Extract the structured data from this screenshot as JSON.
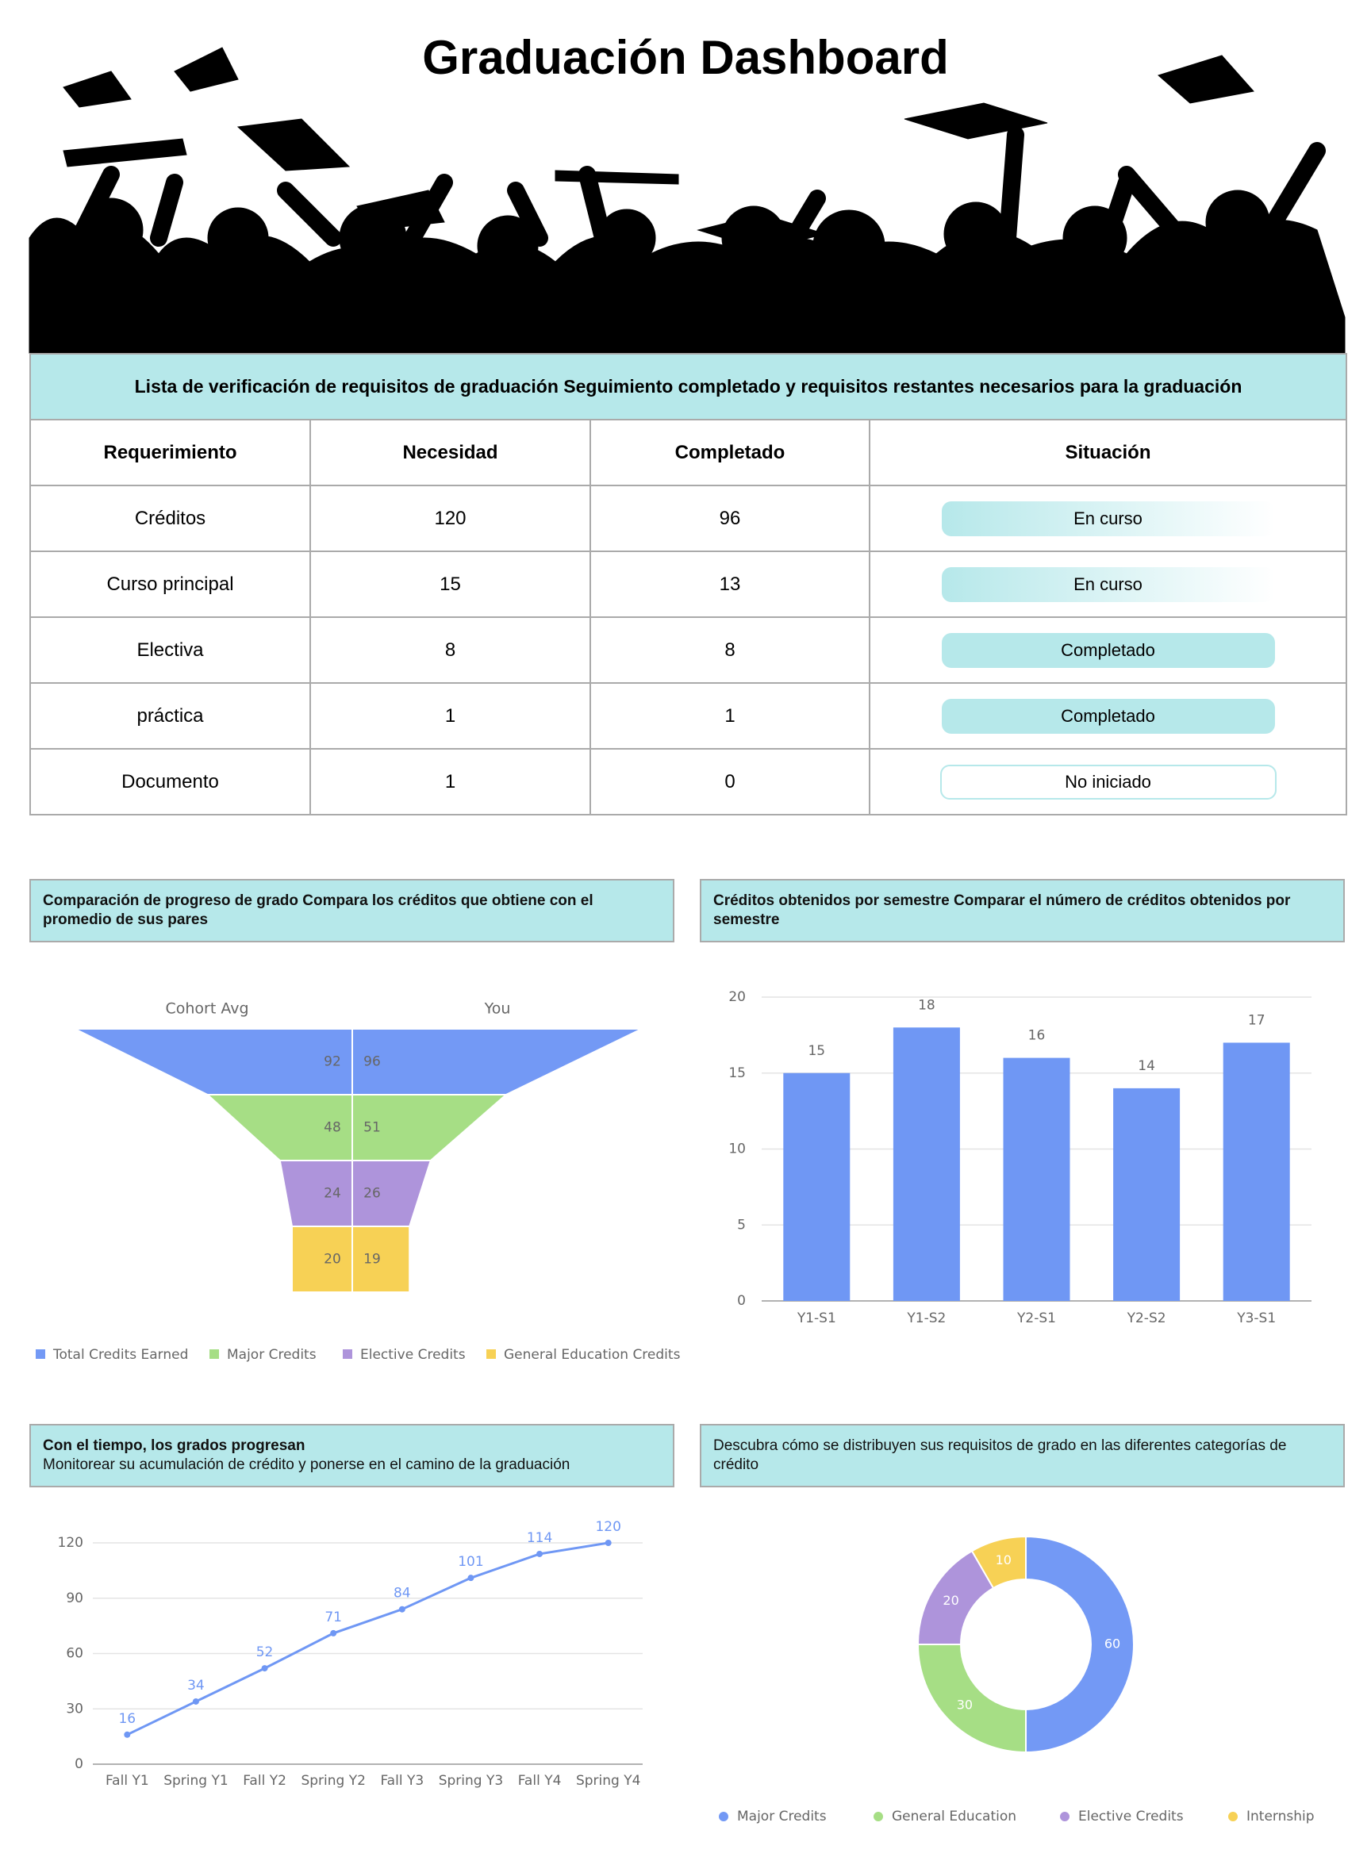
{
  "header": {
    "title": "Graduación Dashboard"
  },
  "table": {
    "caption": "Lista de verificación de requisitos de graduación Seguimiento completado y requisitos restantes necesarios para la graduación",
    "columns": [
      "Requerimiento",
      "Necesidad",
      "Completado",
      "Situación"
    ],
    "rows": [
      [
        "Créditos",
        120,
        96,
        "En curso"
      ],
      [
        "Curso principal",
        15,
        13,
        "En curso"
      ],
      [
        "Electiva",
        8,
        8,
        "Completado"
      ],
      [
        "práctica",
        1,
        1,
        "Completado"
      ],
      [
        "Documento",
        1,
        0,
        "No iniciado"
      ]
    ]
  },
  "chart_data": [
    {
      "type": "funnel",
      "title": "Comparación de progreso de grado Compara los créditos que obtiene con el promedio de sus pares",
      "categories": [
        "Total Credits Earned",
        "Major Credits",
        "Elective Credits",
        "General Education Credits"
      ],
      "colors": [
        "#7399f5",
        "#a6de85",
        "#ae94db",
        "#f7d155"
      ],
      "series": [
        {
          "name": "Cohort Avg",
          "values": [
            92,
            48,
            24,
            20
          ]
        },
        {
          "name": "You",
          "values": [
            96,
            51,
            26,
            19
          ]
        }
      ]
    },
    {
      "type": "bar",
      "title": "Créditos obtenidos por semestre Comparar el número de créditos obtenidos por semestre",
      "categories": [
        "Y1-S1",
        "Y1-S2",
        "Y2-S1",
        "Y2-S2",
        "Y3-S1"
      ],
      "values": [
        15,
        18,
        16,
        14,
        17
      ],
      "color": "#6f97f4",
      "ylim": [
        0,
        20
      ],
      "yticks": [
        0,
        5,
        10,
        15,
        20
      ],
      "grid": true
    },
    {
      "type": "line",
      "title": "Con el tiempo, los grados progresan",
      "subtitle": "Monitorear su acumulación de crédito y ponerse en el camino de la graduación",
      "categories": [
        "Fall Y1",
        "Spring Y1",
        "Fall Y2",
        "Spring Y2",
        "Fall Y3",
        "Spring Y3",
        "Fall Y4",
        "Spring Y4"
      ],
      "values": [
        16,
        34,
        52,
        71,
        84,
        101,
        114,
        120
      ],
      "color": "#6f97f4",
      "ylim": [
        0,
        120
      ],
      "yticks": [
        0,
        30,
        60,
        90,
        120
      ],
      "grid": true
    },
    {
      "type": "pie",
      "donut": true,
      "title": "Descubra cómo se distribuyen sus requisitos de grado en las diferentes categorías de crédito",
      "categories": [
        "Major Credits",
        "General Education",
        "Elective Credits",
        "Internship"
      ],
      "values": [
        60,
        30,
        20,
        10
      ],
      "colors": [
        "#7399f5",
        "#a6de85",
        "#ae94db",
        "#f7d155"
      ]
    }
  ]
}
